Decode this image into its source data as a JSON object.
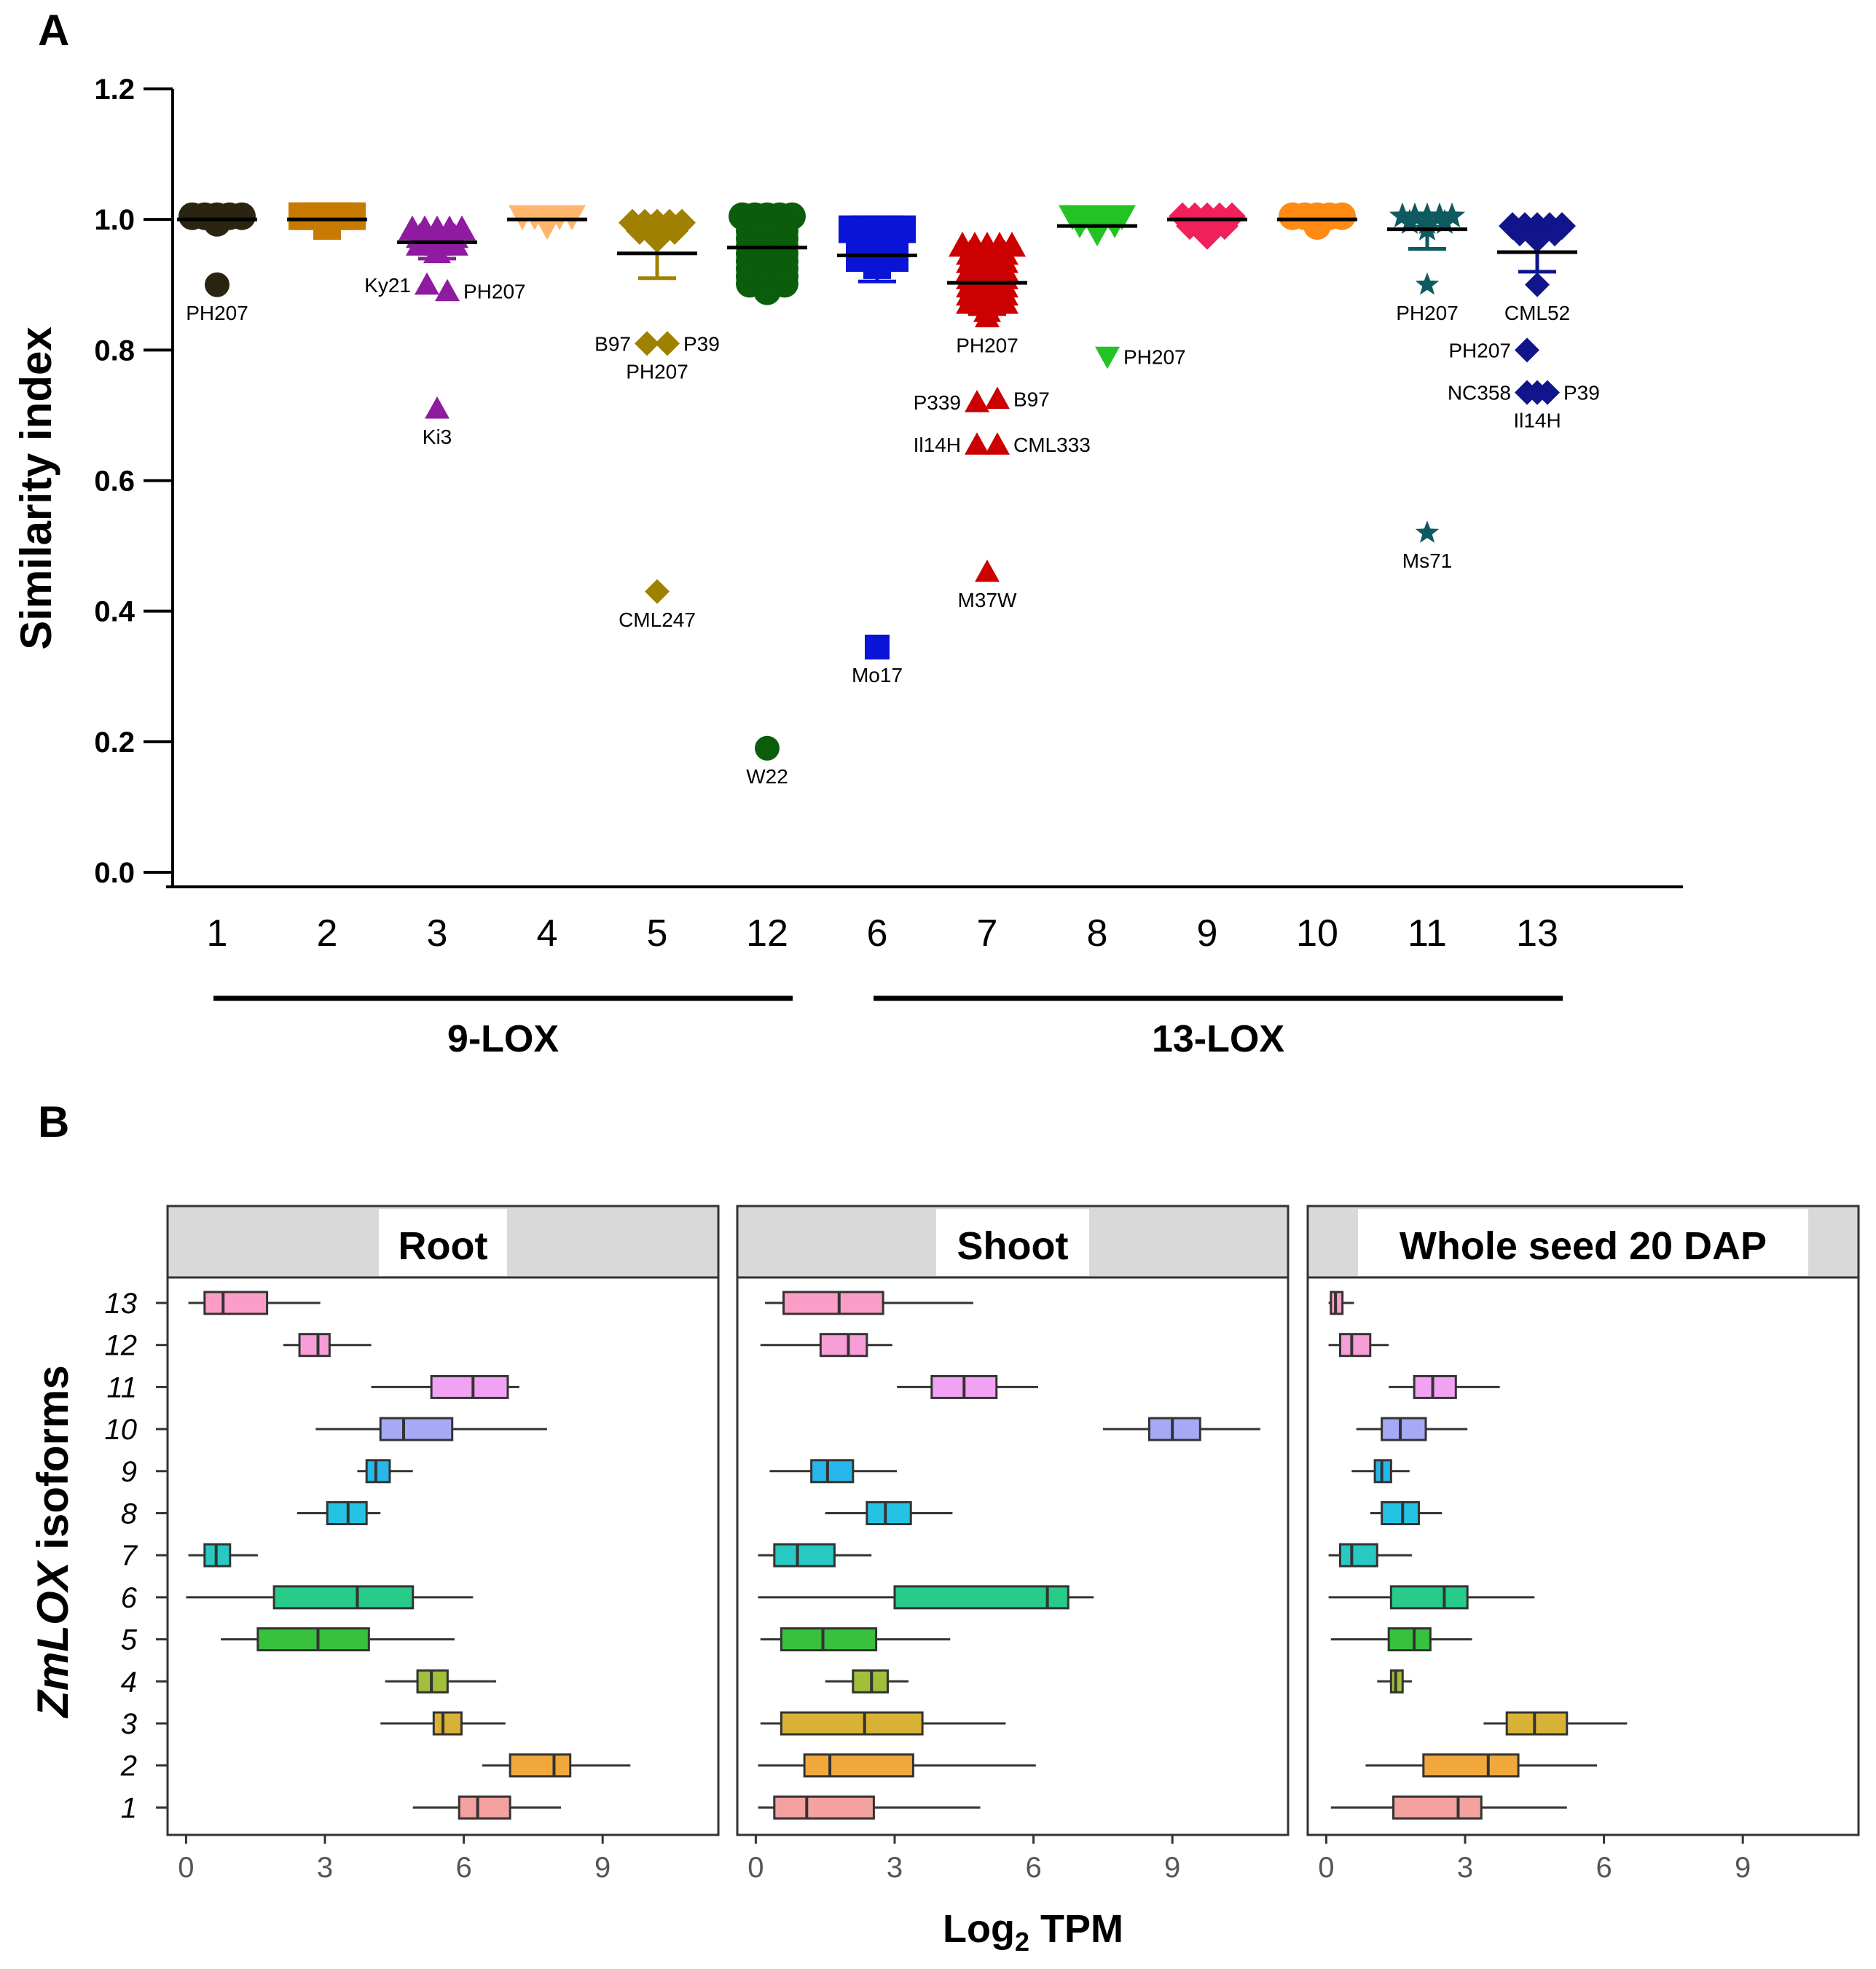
{
  "panel_labels": {
    "a": "A",
    "b": "B"
  },
  "chart_data": [
    {
      "type": "scatter",
      "panel": "A",
      "ylabel": "Similarity index",
      "ylim": [
        0.0,
        1.2
      ],
      "yticks": [
        "0.0",
        "0.2",
        "0.4",
        "0.6",
        "0.8",
        "1.0",
        "1.2"
      ],
      "categories": [
        "1",
        "2",
        "3",
        "4",
        "5",
        "12",
        "6",
        "7",
        "8",
        "9",
        "10",
        "11",
        "13"
      ],
      "groups": [
        {
          "label": "9-LOX",
          "categories": [
            "1",
            "2",
            "3",
            "4",
            "5",
            "12"
          ]
        },
        {
          "label": "13-LOX",
          "categories": [
            "6",
            "7",
            "8",
            "9",
            "10",
            "11",
            "13"
          ]
        }
      ],
      "series": [
        {
          "category": "1",
          "color": "#2b2410",
          "marker": "circle",
          "mean": 1.0,
          "error": [
            1.0,
            1.0
          ],
          "cluster": [
            0.995,
            1.005
          ],
          "outliers": [
            {
              "y": 0.9,
              "label": "PH207",
              "pos": "below"
            }
          ]
        },
        {
          "category": "2",
          "color": "#c87a00",
          "marker": "square",
          "mean": 1.0,
          "error": [
            1.0,
            1.0
          ],
          "cluster": [
            0.99,
            1.005
          ],
          "outliers": []
        },
        {
          "category": "3",
          "color": "#8e1ba0",
          "marker": "triangle",
          "mean": 0.965,
          "error": [
            0.94,
            0.985
          ],
          "cluster": [
            0.95,
            0.985
          ],
          "outliers": [
            {
              "y": 0.9,
              "label": "Ky21",
              "pos": "left"
            },
            {
              "y": 0.89,
              "label": "PH207",
              "pos": "right"
            },
            {
              "y": 0.71,
              "label": "Ki3",
              "pos": "below"
            }
          ]
        },
        {
          "category": "4",
          "color": "#ffb66c",
          "marker": "triangle-down",
          "mean": 1.0,
          "error": [
            1.0,
            1.0
          ],
          "cluster": [
            0.99,
            1.005
          ],
          "outliers": []
        },
        {
          "category": "5",
          "color": "#a08000",
          "marker": "diamond",
          "mean": 0.948,
          "error": [
            0.91,
            0.99
          ],
          "cluster": [
            0.97,
            0.995
          ],
          "outliers": [
            {
              "y": 0.81,
              "label": "B97",
              "pos": "left"
            },
            {
              "y": 0.81,
              "label": "P39",
              "pos": "right"
            },
            {
              "y": 0.81,
              "label": "PH207",
              "pos": "below"
            },
            {
              "y": 0.43,
              "label": "CML247",
              "pos": "below"
            }
          ]
        },
        {
          "category": "12",
          "color": "#0b5d0b",
          "marker": "circle",
          "mean": 0.957,
          "error": [
            0.9,
            1.005
          ],
          "cluster": [
            0.89,
            1.005
          ],
          "outliers": [
            {
              "y": 0.19,
              "label": "W22",
              "pos": "below"
            }
          ]
        },
        {
          "category": "6",
          "color": "#0a14d6",
          "marker": "square",
          "mean": 0.945,
          "error": [
            0.905,
            0.985
          ],
          "cluster": [
            0.93,
            0.985
          ],
          "outliers": [
            {
              "y": 0.345,
              "label": "Mo17",
              "pos": "below"
            }
          ]
        },
        {
          "category": "7",
          "color": "#cc0000",
          "marker": "triangle",
          "mean": 0.903,
          "error": [
            0.855,
            0.955
          ],
          "cluster": [
            0.86,
            0.96
          ],
          "outliers": [
            {
              "y": 0.725,
              "label": "B97",
              "pos": "right"
            },
            {
              "y": 0.72,
              "label": "P339",
              "pos": "left"
            },
            {
              "y": 0.655,
              "label": "Il14H",
              "pos": "left"
            },
            {
              "y": 0.655,
              "label": "CML333",
              "pos": "right"
            },
            {
              "y": 0.46,
              "label": "M37W",
              "pos": "below"
            },
            {
              "y": 0.85,
              "label": "PH207",
              "pos": "below"
            }
          ]
        },
        {
          "category": "8",
          "color": "#22c322",
          "marker": "triangle-down",
          "mean": 0.99,
          "error": [
            0.99,
            0.99
          ],
          "cluster": [
            0.98,
            1.005
          ],
          "outliers": [
            {
              "y": 0.79,
              "label": "PH207",
              "pos": "right"
            }
          ]
        },
        {
          "category": "9",
          "color": "#f0205a",
          "marker": "diamond",
          "mean": 1.0,
          "error": [
            1.0,
            1.0
          ],
          "cluster": [
            0.975,
            1.005
          ],
          "outliers": []
        },
        {
          "category": "10",
          "color": "#ff8a14",
          "marker": "circle",
          "mean": 1.0,
          "error": [
            1.0,
            1.0
          ],
          "cluster": [
            0.99,
            1.005
          ],
          "outliers": []
        },
        {
          "category": "11",
          "color": "#0e5a5e",
          "marker": "star",
          "mean": 0.985,
          "error": [
            0.955,
            1.005
          ],
          "cluster": [
            0.985,
            1.005
          ],
          "outliers": [
            {
              "y": 0.9,
              "label": "PH207",
              "pos": "below"
            },
            {
              "y": 0.52,
              "label": "Ms71",
              "pos": "below"
            }
          ]
        },
        {
          "category": "13",
          "color": "#10158c",
          "marker": "diamond",
          "mean": 0.95,
          "error": [
            0.92,
            0.985
          ],
          "cluster": [
            0.97,
            0.99
          ],
          "outliers": [
            {
              "y": 0.9,
              "label": "CML52",
              "pos": "below"
            },
            {
              "y": 0.8,
              "label": "PH207",
              "pos": "left"
            },
            {
              "y": 0.735,
              "label": "NC358",
              "pos": "left"
            },
            {
              "y": 0.735,
              "label": "P39",
              "pos": "right"
            },
            {
              "y": 0.735,
              "label": "Il14H",
              "pos": "below"
            }
          ]
        }
      ]
    },
    {
      "type": "boxplot",
      "panel": "B",
      "ylabel_italic": "ZmLOX",
      "ylabel_rest": " isoforms",
      "xlabel": "Log",
      "xlabel_sub": "2",
      "xlabel_rest": " TPM",
      "xlim": [
        -0.4,
        11.5
      ],
      "xticks": [
        "0",
        "3",
        "6",
        "9"
      ],
      "categories": [
        "13",
        "12",
        "11",
        "10",
        "9",
        "8",
        "7",
        "6",
        "5",
        "4",
        "3",
        "2",
        "1"
      ],
      "colors": {
        "1": "#f4a2a0",
        "2": "#f0a83c",
        "3": "#d8b236",
        "4": "#a2bf3c",
        "5": "#38c13c",
        "6": "#27cc8a",
        "7": "#27c9c2",
        "8": "#25c3e3",
        "9": "#27b7ea",
        "10": "#a6aaf6",
        "11": "#f1a2f3",
        "12": "#f79dd8",
        "13": "#fc9dc8"
      },
      "facets": [
        {
          "title": "Root",
          "boxes": {
            "13": [
              0.05,
              0.4,
              0.8,
              1.75,
              2.9
            ],
            "12": [
              2.1,
              2.45,
              2.85,
              3.1,
              4.0
            ],
            "11": [
              4.0,
              5.3,
              6.2,
              6.95,
              7.2
            ],
            "10": [
              2.8,
              4.2,
              4.7,
              5.75,
              7.8
            ],
            "9": [
              3.7,
              3.9,
              4.1,
              4.4,
              4.9
            ],
            "8": [
              2.4,
              3.05,
              3.5,
              3.9,
              4.2
            ],
            "7": [
              0.05,
              0.4,
              0.65,
              0.95,
              1.55
            ],
            "6": [
              0.0,
              1.9,
              3.7,
              4.9,
              6.2
            ],
            "5": [
              0.75,
              1.55,
              2.85,
              3.95,
              5.8
            ],
            "4": [
              4.3,
              5.0,
              5.3,
              5.65,
              6.7
            ],
            "3": [
              4.2,
              5.35,
              5.55,
              5.95,
              6.9
            ],
            "2": [
              6.4,
              7.0,
              7.95,
              8.3,
              9.6
            ],
            "1": [
              4.9,
              5.9,
              6.3,
              7.0,
              8.1
            ]
          }
        },
        {
          "title": "Shoot",
          "boxes": {
            "13": [
              0.2,
              0.6,
              1.8,
              2.75,
              4.7
            ],
            "12": [
              0.1,
              1.4,
              2.0,
              2.4,
              2.95
            ],
            "11": [
              3.05,
              3.8,
              4.5,
              5.2,
              6.1
            ],
            "10": [
              7.5,
              8.5,
              9.0,
              9.6,
              10.9
            ],
            "9": [
              0.3,
              1.2,
              1.55,
              2.1,
              3.05
            ],
            "8": [
              1.5,
              2.4,
              2.8,
              3.35,
              4.25
            ],
            "7": [
              0.05,
              0.4,
              0.9,
              1.7,
              2.5
            ],
            "6": [
              0.05,
              3.0,
              6.3,
              6.75,
              7.3
            ],
            "5": [
              0.1,
              0.55,
              1.45,
              2.6,
              4.2
            ],
            "4": [
              1.5,
              2.1,
              2.5,
              2.85,
              3.3
            ],
            "3": [
              0.1,
              0.55,
              2.35,
              3.6,
              5.4
            ],
            "2": [
              0.05,
              1.05,
              1.6,
              3.4,
              6.05
            ],
            "1": [
              0.05,
              0.4,
              1.1,
              2.55,
              4.85
            ]
          }
        },
        {
          "title": "Whole seed 20 DAP",
          "boxes": {
            "13": [
              0.05,
              0.1,
              0.2,
              0.35,
              0.6
            ],
            "12": [
              0.05,
              0.3,
              0.55,
              0.95,
              1.35
            ],
            "11": [
              1.35,
              1.9,
              2.3,
              2.8,
              3.75
            ],
            "10": [
              0.65,
              1.2,
              1.6,
              2.15,
              3.05
            ],
            "9": [
              0.55,
              1.05,
              1.2,
              1.4,
              1.8
            ],
            "8": [
              0.95,
              1.2,
              1.65,
              2.0,
              2.5
            ],
            "7": [
              0.05,
              0.3,
              0.55,
              1.1,
              1.85
            ],
            "6": [
              0.05,
              1.4,
              2.55,
              3.05,
              4.5
            ],
            "5": [
              0.1,
              1.35,
              1.9,
              2.25,
              3.15
            ],
            "4": [
              1.1,
              1.4,
              1.5,
              1.65,
              1.85
            ],
            "3": [
              3.4,
              3.9,
              4.5,
              5.2,
              6.5
            ],
            "2": [
              0.85,
              2.1,
              3.5,
              4.15,
              5.85
            ],
            "1": [
              0.1,
              1.45,
              2.85,
              3.35,
              5.2
            ]
          }
        }
      ]
    }
  ]
}
